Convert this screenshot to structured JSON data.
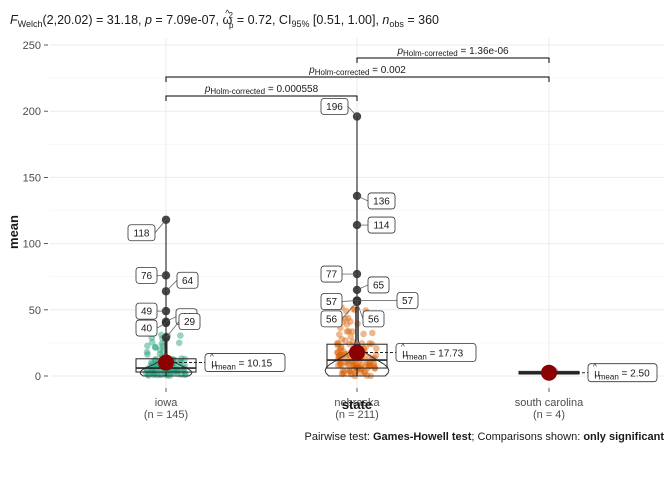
{
  "chart_data": {
    "type": "violin-box",
    "subtitle": {
      "f": "F",
      "f_sub": "Welch",
      "f_args": "(2,20.02) = 31.18, ",
      "p_label": "p",
      "p_value": " = 7.09e-07, ",
      "omega": "ω",
      "omega_hat": "^",
      "omega_sup": "2",
      "omega_sub": "p",
      "omega_value": " = 0.72, CI",
      "ci_sub": "95%",
      "ci_value": " [0.51, 1.00], ",
      "n_label": "n",
      "n_sub": "obs",
      "n_value": " = 360"
    },
    "ylabel": "mean",
    "xlabel": "state",
    "ylim": [
      0,
      250
    ],
    "yticks": [
      "0",
      "50",
      "100",
      "150",
      "200",
      "250"
    ],
    "ytick_values": [
      0,
      50,
      100,
      150,
      200,
      250
    ],
    "groups": [
      {
        "name": "iowa",
        "n_label": "(n = 145)",
        "color": "#1b9e77",
        "box": {
          "q1": 3,
          "median": 6,
          "q3": 13,
          "lower": 0,
          "upper": 29
        },
        "mean": 10.15,
        "mean_text": " = 10.15",
        "outliers": [
          118,
          76,
          64,
          49,
          41,
          40,
          29
        ],
        "labels": [
          {
            "text": "118",
            "value": 118
          },
          {
            "text": "76",
            "value": 76
          },
          {
            "text": "64",
            "value": 64
          },
          {
            "text": "49",
            "value": 49
          },
          {
            "text": "41",
            "value": 41
          },
          {
            "text": "40",
            "value": 40
          },
          {
            "text": "29",
            "value": 29
          }
        ]
      },
      {
        "name": "nebraska",
        "n_label": "(n = 211)",
        "color": "#d95f02",
        "box": {
          "q1": 6,
          "median": 12,
          "q3": 24,
          "lower": 0,
          "upper": 52
        },
        "mean": 17.73,
        "mean_text": " = 17.73",
        "outliers": [
          196,
          136,
          114,
          77,
          65,
          57,
          57,
          56,
          56
        ],
        "labels": [
          {
            "text": "196",
            "value": 196
          },
          {
            "text": "136",
            "value": 136
          },
          {
            "text": "114",
            "value": 114
          },
          {
            "text": "77",
            "value": 77
          },
          {
            "text": "65",
            "value": 65
          },
          {
            "text": "57",
            "value": 57
          },
          {
            "text": "57",
            "value": 57
          },
          {
            "text": "56",
            "value": 56
          },
          {
            "text": "56",
            "value": 56
          }
        ]
      },
      {
        "name": "south carolina",
        "n_label": "(n = 4)",
        "color": "#7570b3",
        "box": {
          "q1": 1.5,
          "median": 2.5,
          "q3": 3.5,
          "lower": 1,
          "upper": 4
        },
        "mean": 2.5,
        "mean_text": " = 2.50",
        "outliers": [],
        "labels": []
      }
    ],
    "mean_symbol": "μ",
    "mean_sub": "mean",
    "comparisons": [
      {
        "from": "nebraska",
        "to": "south carolina",
        "p_label": "p",
        "p_sub": "Holm-corrected",
        "p_value": " = 1.36e-06"
      },
      {
        "from": "iowa",
        "to": "south carolina",
        "p_label": "p",
        "p_sub": "Holm-corrected",
        "p_value": " = 0.002"
      },
      {
        "from": "iowa",
        "to": "nebraska",
        "p_label": "p",
        "p_sub": "Holm-corrected",
        "p_value": " = 0.000558"
      }
    ],
    "caption": {
      "prefix": "Pairwise test: ",
      "test": "Games-Howell test",
      "middle": "; Comparisons shown: ",
      "shown": "only significant"
    },
    "grid": true
  }
}
